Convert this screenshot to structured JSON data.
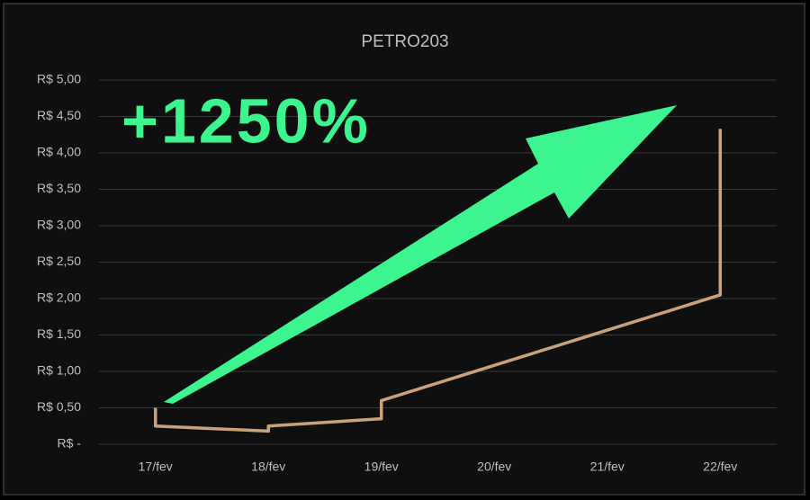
{
  "chart_data": {
    "type": "line",
    "title": "PETRO203",
    "annotation": "+1250%",
    "categories": [
      "17/fev",
      "18/fev",
      "19/fev",
      "20/fev",
      "21/fev",
      "22/fev"
    ],
    "series": [
      {
        "name": "PETRO203",
        "color": "#c9a27c",
        "x": [
          "17/fev",
          "17/fev",
          "18/fev",
          "18/fev",
          "19/fev",
          "19/fev",
          "22/fev",
          "22/fev"
        ],
        "values": [
          0.5,
          0.25,
          0.18,
          0.25,
          0.35,
          0.6,
          2.05,
          4.33
        ]
      }
    ],
    "ylim": [
      0,
      5
    ],
    "yticks": [
      {
        "value": 0,
        "label": "R$ -"
      },
      {
        "value": 0.5,
        "label": "R$ 0,50"
      },
      {
        "value": 1,
        "label": "R$ 1,00"
      },
      {
        "value": 1.5,
        "label": "R$ 1,50"
      },
      {
        "value": 2,
        "label": "R$ 2,00"
      },
      {
        "value": 2.5,
        "label": "R$ 2,50"
      },
      {
        "value": 3,
        "label": "R$ 3,00"
      },
      {
        "value": 3.5,
        "label": "R$ 3,50"
      },
      {
        "value": 4,
        "label": "R$ 4,00"
      },
      {
        "value": 4.5,
        "label": "R$ 4,50"
      },
      {
        "value": 5,
        "label": "R$ 5,00"
      }
    ],
    "grid": true
  }
}
